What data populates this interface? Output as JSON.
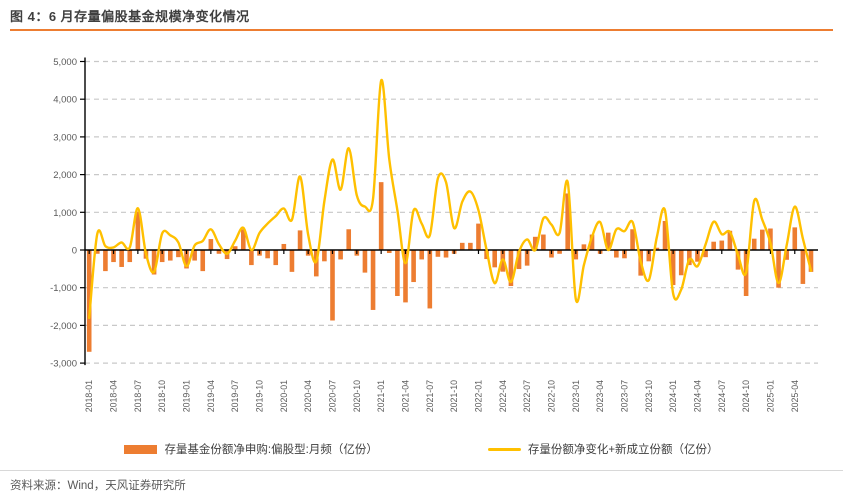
{
  "figure": {
    "title": "图 4：6 月存量偏股基金规模净变化情况"
  },
  "footer": {
    "source": "资料来源：Wind，天风证券研究所"
  },
  "colors": {
    "bar": "#ED7D31",
    "line": "#FFC000",
    "axis": "#000000",
    "grid": "#C8C8C8",
    "tick_text": "#595959",
    "accent_rule": "#ED7D31"
  },
  "chart_data": {
    "type": "bar",
    "title": "图 4：6 月存量偏股基金规模净变化情况",
    "xlabel": "",
    "ylabel": "",
    "ylim": [
      -3000,
      5000
    ],
    "grid": "horizontal-dashed",
    "legend_position": "bottom",
    "x_label_every": 3,
    "y_ticks": [
      5000,
      4000,
      3000,
      2000,
      1000,
      0,
      -1000,
      -2000,
      -3000
    ],
    "y_tick_labels": [
      "5,000",
      "4,000",
      "3,000",
      "2,000",
      "1,000",
      "0",
      "-1,000",
      "-2,000",
      "-3,000"
    ],
    "x": [
      "2018-01",
      "2018-02",
      "2018-03",
      "2018-04",
      "2018-05",
      "2018-06",
      "2018-07",
      "2018-08",
      "2018-09",
      "2018-10",
      "2018-11",
      "2018-12",
      "2019-01",
      "2019-02",
      "2019-03",
      "2019-04",
      "2019-05",
      "2019-06",
      "2019-07",
      "2019-08",
      "2019-09",
      "2019-10",
      "2019-11",
      "2019-12",
      "2020-01",
      "2020-02",
      "2020-03",
      "2020-04",
      "2020-05",
      "2020-06",
      "2020-07",
      "2020-08",
      "2020-09",
      "2020-10",
      "2020-11",
      "2020-12",
      "2021-01",
      "2021-02",
      "2021-03",
      "2021-04",
      "2021-05",
      "2021-06",
      "2021-07",
      "2021-08",
      "2021-09",
      "2021-10",
      "2021-11",
      "2021-12",
      "2022-01",
      "2022-02",
      "2022-03",
      "2022-04",
      "2022-05",
      "2022-06",
      "2022-07",
      "2022-08",
      "2022-09",
      "2022-10",
      "2022-11",
      "2022-12",
      "2023-01",
      "2023-02",
      "2023-03",
      "2023-04",
      "2023-05",
      "2023-06",
      "2023-07",
      "2023-08",
      "2023-09",
      "2023-10",
      "2023-11",
      "2023-12",
      "2024-01",
      "2024-02",
      "2024-03",
      "2024-04",
      "2024-05",
      "2024-06",
      "2024-07",
      "2024-08",
      "2024-09",
      "2024-10",
      "2024-11",
      "2024-12",
      "2025-01",
      "2025-02",
      "2025-03",
      "2025-04",
      "2025-05",
      "2025-06"
    ],
    "series": [
      {
        "name": "存量基金份额净申购:偏股型:月频（亿份）",
        "type": "bar",
        "color": "#ED7D31",
        "values": [
          -2700,
          -100,
          -560,
          -320,
          -450,
          -320,
          1020,
          -230,
          -650,
          -320,
          -280,
          -190,
          -490,
          -280,
          -560,
          290,
          -100,
          -240,
          100,
          550,
          -400,
          -150,
          -220,
          -400,
          160,
          -580,
          520,
          -150,
          -700,
          -300,
          -1870,
          -250,
          550,
          -150,
          -600,
          -1590,
          1800,
          -80,
          -1220,
          -1390,
          -850,
          -250,
          -1550,
          -180,
          -200,
          -100,
          190,
          190,
          700,
          -240,
          -460,
          -575,
          -955,
          -505,
          -415,
          350,
          410,
          -200,
          -100,
          1500,
          -250,
          150,
          410,
          -100,
          460,
          -200,
          -220,
          550,
          -680,
          -300,
          60,
          770,
          -930,
          -670,
          -400,
          -310,
          -190,
          220,
          250,
          510,
          -520,
          -1220,
          300,
          540,
          570,
          -1000,
          -260,
          600,
          -900,
          -580
        ]
      },
      {
        "name": "存量份额净变化+新成立份额（亿份）",
        "type": "line",
        "color": "#FFC000",
        "values": [
          -1800,
          430,
          100,
          70,
          200,
          70,
          1110,
          -100,
          -580,
          440,
          390,
          200,
          -430,
          120,
          240,
          550,
          150,
          -100,
          250,
          590,
          0,
          450,
          700,
          900,
          1100,
          800,
          1950,
          400,
          -300,
          1300,
          2400,
          1600,
          2700,
          1450,
          1150,
          1350,
          4500,
          2400,
          1050,
          -350,
          1050,
          700,
          390,
          1900,
          1800,
          580,
          1280,
          1550,
          1050,
          0,
          -880,
          -250,
          -850,
          -50,
          280,
          0,
          840,
          670,
          450,
          1800,
          -1300,
          -400,
          350,
          740,
          0,
          550,
          500,
          740,
          -300,
          -800,
          350,
          1050,
          -1150,
          -1050,
          -250,
          -430,
          150,
          750,
          420,
          480,
          -130,
          -600,
          1300,
          800,
          190,
          -875,
          130,
          1150,
          300,
          -550
        ]
      }
    ]
  }
}
